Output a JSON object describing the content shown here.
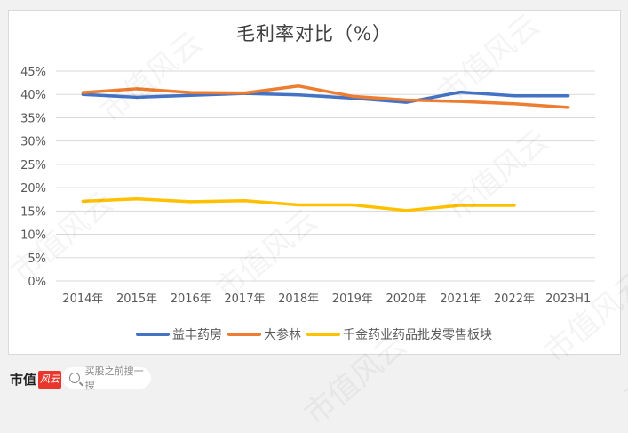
{
  "chart_data": {
    "type": "line",
    "title": "毛利率对比（%）",
    "xlabel": "",
    "ylabel": "",
    "ylim": [
      0,
      45
    ],
    "yticks": [
      "0%",
      "5%",
      "10%",
      "15%",
      "20%",
      "25%",
      "30%",
      "35%",
      "40%",
      "45%"
    ],
    "grid": true,
    "legend_position": "bottom",
    "categories": [
      "2014年",
      "2015年",
      "2016年",
      "2017年",
      "2018年",
      "2019年",
      "2020年",
      "2021年",
      "2022年",
      "2023H1"
    ],
    "series": [
      {
        "name": "益丰药房",
        "color": "#4472c4",
        "values": [
          40.0,
          39.4,
          39.8,
          40.2,
          39.9,
          39.2,
          38.3,
          40.5,
          39.7,
          39.7
        ]
      },
      {
        "name": "大参林",
        "color": "#ed7d31",
        "values": [
          40.4,
          41.2,
          40.4,
          40.3,
          41.8,
          39.6,
          38.8,
          38.5,
          38.0,
          37.2
        ]
      },
      {
        "name": "千金药业药品批发零售板块",
        "color": "#ffc000",
        "values": [
          17.1,
          17.6,
          17.0,
          17.2,
          16.3,
          16.3,
          15.1,
          16.2,
          16.2,
          null
        ]
      }
    ]
  },
  "watermark": "市值风云",
  "footer": {
    "brand": "市值",
    "brand_logo": "风云",
    "search_placeholder": "买股之前搜一搜"
  }
}
